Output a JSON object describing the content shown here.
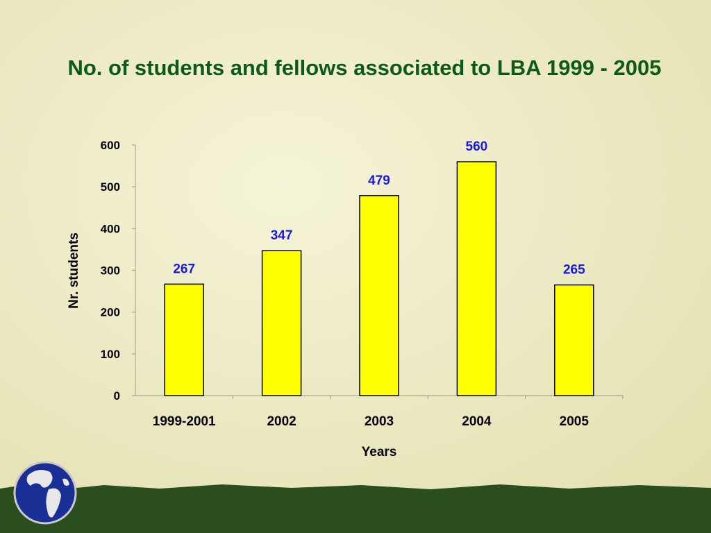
{
  "slide": {
    "colors": {
      "background": "#efecc4",
      "title": "#0d5a16",
      "bar_fill": "#ffff00",
      "data_label": "#1a1adf",
      "bottom_band": "#2b4e1e",
      "globe_ocean": "#1a2f96",
      "globe_land": "#e8e8e8"
    },
    "logo_icon": "globe-icon"
  },
  "chart_data": {
    "type": "bar",
    "title": "No. of students and fellows associated to LBA 1999 - 2005",
    "xlabel": "Years",
    "ylabel": "Nr. students",
    "categories": [
      "1999-2001",
      "2002",
      "2003",
      "2004",
      "2005"
    ],
    "values": [
      267,
      347,
      479,
      560,
      265
    ],
    "data_labels": [
      "267",
      "347",
      "479",
      "560",
      "265"
    ],
    "ylim": [
      0,
      600
    ],
    "yticks": [
      "0",
      "100",
      "200",
      "300",
      "400",
      "500",
      "600"
    ],
    "grid": false,
    "legend": "none"
  }
}
